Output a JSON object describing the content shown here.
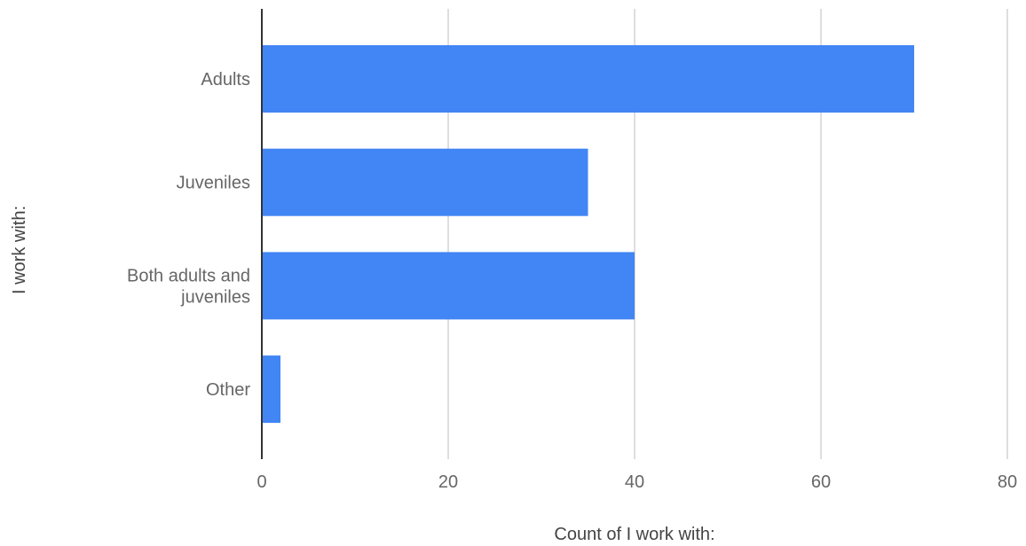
{
  "chart_data": {
    "type": "bar",
    "orientation": "horizontal",
    "categories": [
      [
        "Adults"
      ],
      [
        "Juveniles"
      ],
      [
        "Both adults and",
        "juveniles"
      ],
      [
        "Other"
      ]
    ],
    "values": [
      70,
      35,
      40,
      2
    ],
    "xlabel": "Count of I work with:",
    "ylabel": "I work with:",
    "xlim": [
      0,
      80
    ],
    "xticks": [
      "0",
      "20",
      "40",
      "60",
      "80"
    ],
    "grid": true,
    "legend": "none",
    "colors": {
      "bar": "#4285f4",
      "grid": "#cccccc",
      "axis": "#333333"
    }
  }
}
